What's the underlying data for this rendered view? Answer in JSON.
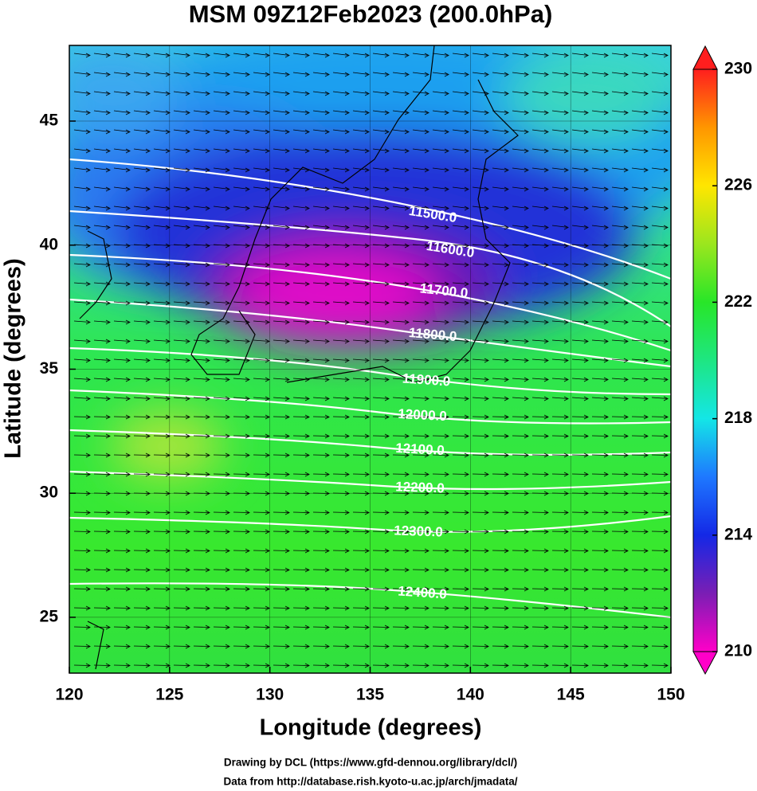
{
  "chart_data": {
    "type": "map",
    "title": "MSM 09Z12Feb2023 (200.0hPa)",
    "x_label": "Longitude (degrees)",
    "y_label": "Latitude  (degrees)",
    "xlim": [
      120,
      150
    ],
    "ylim": [
      22.75,
      48.05
    ],
    "xticks": [
      120,
      125,
      130,
      135,
      140,
      145,
      150
    ],
    "yticks": [
      25,
      30,
      35,
      40,
      45
    ],
    "grid": true,
    "contour_labels": [
      {
        "value": 11500,
        "label": "11500.0"
      },
      {
        "value": 11600,
        "label": "11600.0"
      },
      {
        "value": 11700,
        "label": "11700.0"
      },
      {
        "value": 11800,
        "label": "11800.0"
      },
      {
        "value": 11900,
        "label": "11900.0"
      },
      {
        "value": 12000,
        "label": "12000.0"
      },
      {
        "value": 12100,
        "label": "12100.0"
      },
      {
        "value": 12200,
        "label": "12200.0"
      },
      {
        "value": 12300,
        "label": "12300.0"
      },
      {
        "value": 12400,
        "label": "12400.0"
      }
    ],
    "colorbar": {
      "lim": [
        210,
        230
      ],
      "ticks": [
        210,
        214,
        218,
        222,
        226,
        230
      ],
      "colors": [
        "#ff00c8",
        "#7a1eb4",
        "#1428e6",
        "#1e78ff",
        "#14e6e6",
        "#1ee682",
        "#28e628",
        "#9be61e",
        "#ffe600",
        "#ff9600",
        "#ff1e1e"
      ]
    }
  },
  "credits": [
    "Drawing by DCL (https://www.gfd-dennou.org/library/dcl/)",
    "Data from http://database.rish.kyoto-u.ac.jp/arch/jmadata/"
  ]
}
